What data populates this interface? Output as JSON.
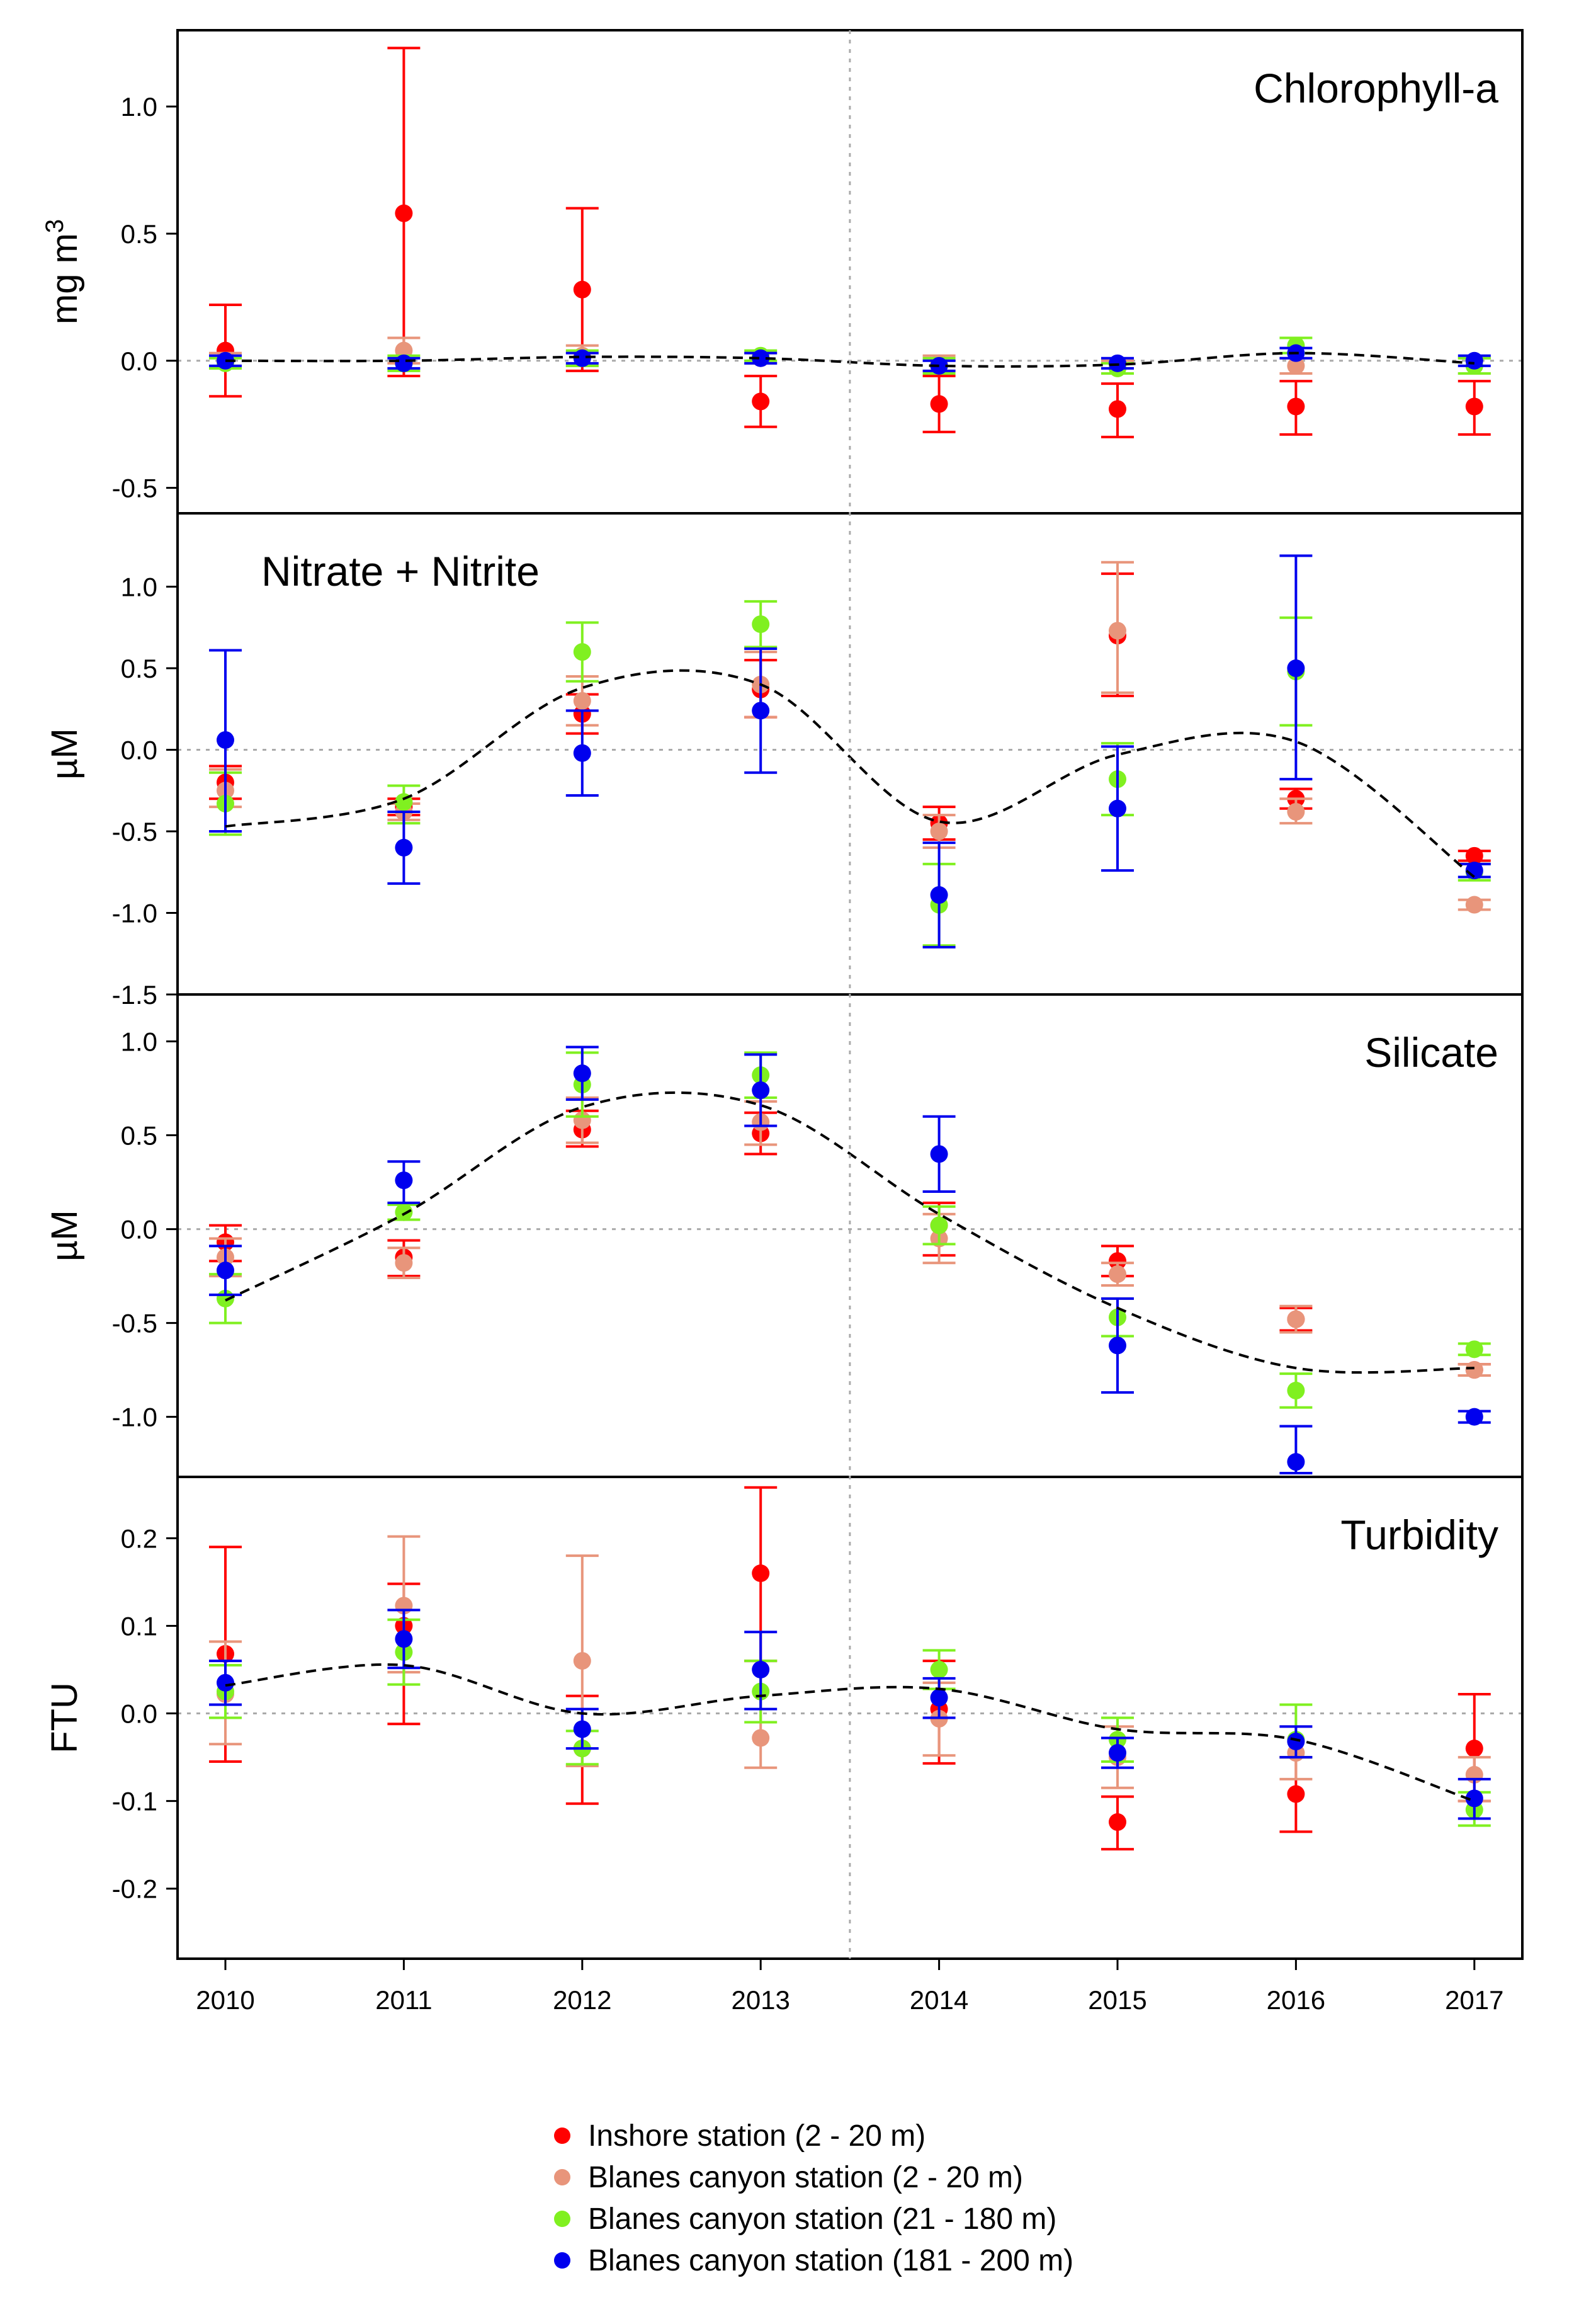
{
  "chart_data": {
    "type": "scatter",
    "x": [
      "2010",
      "2011",
      "2012",
      "2013",
      "2014",
      "2015",
      "2016",
      "2017"
    ],
    "series_names": [
      "Inshore station (2 - 20 m)",
      "Blanes canyon station (2 - 20 m)",
      "Blanes canyon station (21 - 180 m)",
      "Blanes canyon station (181 - 200 m)"
    ],
    "series_colors": [
      "#ff0000",
      "#e8957b",
      "#80f020",
      "#0000ee"
    ],
    "vline_between": [
      "2013",
      "2014"
    ],
    "panels": [
      {
        "title": "Chlorophyll-a",
        "title_position": "top-right",
        "ylabel": "mg m",
        "ylabel_sup": "3",
        "ylim": [
          -0.6,
          1.3
        ],
        "yticks": [
          "1.0",
          "0.5",
          "0.0",
          "-0.5"
        ],
        "series": [
          {
            "name": "Inshore station (2 - 20 m)",
            "values": [
              0.04,
              0.58,
              0.28,
              -0.16,
              -0.17,
              -0.19,
              -0.18,
              -0.18
            ],
            "lower": [
              -0.14,
              -0.06,
              -0.04,
              -0.26,
              -0.28,
              -0.3,
              -0.29,
              -0.29
            ],
            "upper": [
              0.22,
              1.23,
              0.6,
              -0.06,
              -0.06,
              -0.09,
              -0.08,
              -0.08
            ]
          },
          {
            "name": "Blanes canyon station (2 - 20 m)",
            "values": [
              0.0,
              0.04,
              0.02,
              0.01,
              -0.01,
              -0.03,
              -0.02,
              -0.02
            ],
            "lower": [
              -0.03,
              -0.01,
              -0.02,
              -0.01,
              -0.04,
              -0.05,
              -0.05,
              -0.05
            ],
            "upper": [
              0.03,
              0.09,
              0.06,
              0.03,
              0.02,
              0.0,
              0.01,
              0.01
            ]
          },
          {
            "name": "Blanes canyon station (21 - 180 m)",
            "values": [
              -0.01,
              -0.01,
              0.01,
              0.02,
              -0.02,
              -0.03,
              0.06,
              -0.02
            ],
            "lower": [
              -0.03,
              -0.04,
              -0.02,
              -0.0,
              -0.05,
              -0.05,
              0.03,
              -0.05
            ],
            "upper": [
              0.01,
              0.02,
              0.04,
              0.04,
              0.01,
              -0.01,
              0.09,
              0.01
            ]
          },
          {
            "name": "Blanes canyon station (181 - 200 m)",
            "values": [
              0.0,
              -0.01,
              0.01,
              0.01,
              -0.02,
              -0.01,
              0.03,
              0.0
            ],
            "lower": [
              -0.02,
              -0.03,
              -0.01,
              -0.01,
              -0.04,
              -0.03,
              0.01,
              -0.02
            ],
            "upper": [
              0.02,
              0.01,
              0.03,
              0.03,
              0.0,
              0.01,
              0.05,
              0.02
            ]
          }
        ],
        "trend": [
          0.0,
          0.0,
          0.015,
          0.01,
          -0.02,
          -0.015,
          0.03,
          -0.01
        ]
      },
      {
        "title": "Nitrate + Nitrite",
        "title_position": "top-left",
        "ylabel": "µM",
        "ylabel_sup": "",
        "ylim": [
          -1.5,
          1.45
        ],
        "yticks": [
          "1.0",
          "0.5",
          "0.0",
          "-0.5",
          "-1.0",
          "-1.5"
        ],
        "series": [
          {
            "name": "Inshore station (2 - 20 m)",
            "values": [
              -0.2,
              -0.35,
              0.22,
              0.37,
              -0.45,
              0.7,
              -0.3,
              -0.65
            ],
            "lower": [
              -0.3,
              -0.4,
              0.1,
              0.2,
              -0.55,
              0.33,
              -0.36,
              -0.68
            ],
            "upper": [
              -0.1,
              -0.3,
              0.34,
              0.55,
              -0.35,
              1.08,
              -0.24,
              -0.62
            ]
          },
          {
            "name": "Blanes canyon station (2 - 20 m)",
            "values": [
              -0.25,
              -0.38,
              0.3,
              0.4,
              -0.5,
              0.73,
              -0.38,
              -0.95
            ],
            "lower": [
              -0.35,
              -0.43,
              0.15,
              0.2,
              -0.6,
              0.35,
              -0.45,
              -0.98
            ],
            "upper": [
              -0.12,
              -0.33,
              0.45,
              0.6,
              -0.4,
              1.15,
              -0.3,
              -0.92
            ]
          },
          {
            "name": "Blanes canyon station (21 - 180 m)",
            "values": [
              -0.33,
              -0.32,
              0.6,
              0.77,
              -0.95,
              -0.18,
              0.48,
              -0.75
            ],
            "lower": [
              -0.52,
              -0.45,
              0.42,
              0.63,
              -1.2,
              -0.4,
              0.15,
              -0.8
            ],
            "upper": [
              -0.14,
              -0.22,
              0.78,
              0.91,
              -0.7,
              0.04,
              0.81,
              -0.7
            ]
          },
          {
            "name": "Blanes canyon station (181 - 200 m)",
            "values": [
              0.06,
              -0.6,
              -0.02,
              0.24,
              -0.89,
              -0.36,
              0.5,
              -0.74
            ],
            "lower": [
              -0.5,
              -0.82,
              -0.28,
              -0.14,
              -1.21,
              -0.74,
              -0.18,
              -0.78
            ],
            "upper": [
              0.61,
              -0.38,
              0.24,
              0.62,
              -0.57,
              0.02,
              1.19,
              -0.7
            ]
          }
        ],
        "trend": [
          -0.47,
          -0.3,
          0.38,
          0.4,
          -0.44,
          -0.03,
          0.05,
          -0.78
        ]
      },
      {
        "title": "Silicate",
        "title_position": "top-right",
        "ylabel": "µM",
        "ylabel_sup": "",
        "ylim": [
          -1.32,
          1.25
        ],
        "yticks": [
          "1.0",
          "0.5",
          "0.0",
          "-0.5",
          "-1.0"
        ],
        "series": [
          {
            "name": "Inshore station (2 - 20 m)",
            "values": [
              -0.07,
              -0.15,
              0.53,
              0.51,
              0.02,
              -0.17,
              -0.48,
              -0.75
            ],
            "lower": [
              -0.17,
              -0.25,
              0.44,
              0.4,
              -0.14,
              -0.25,
              -0.54,
              -0.78
            ],
            "upper": [
              0.02,
              -0.06,
              0.63,
              0.62,
              0.14,
              -0.09,
              -0.42,
              -0.72
            ]
          },
          {
            "name": "Blanes canyon station (2 - 20 m)",
            "values": [
              -0.15,
              -0.18,
              0.58,
              0.57,
              -0.05,
              -0.24,
              -0.48,
              -0.75
            ],
            "lower": [
              -0.25,
              -0.26,
              0.46,
              0.45,
              -0.18,
              -0.3,
              -0.55,
              -0.78
            ],
            "upper": [
              -0.05,
              -0.1,
              0.7,
              0.68,
              0.08,
              -0.18,
              -0.41,
              -0.72
            ]
          },
          {
            "name": "Blanes canyon station (21 - 180 m)",
            "values": [
              -0.37,
              0.09,
              0.77,
              0.82,
              0.02,
              -0.47,
              -0.86,
              -0.64
            ],
            "lower": [
              -0.5,
              0.05,
              0.6,
              0.7,
              -0.08,
              -0.57,
              -0.95,
              -0.67
            ],
            "upper": [
              -0.24,
              0.13,
              0.94,
              0.94,
              0.12,
              -0.37,
              -0.77,
              -0.61
            ]
          },
          {
            "name": "Blanes canyon station (181 - 200 m)",
            "values": [
              -0.22,
              0.26,
              0.83,
              0.74,
              0.4,
              -0.62,
              -1.24,
              -1.0
            ],
            "lower": [
              -0.35,
              0.14,
              0.69,
              0.55,
              0.2,
              -0.87,
              -1.3,
              -1.03
            ],
            "upper": [
              -0.09,
              0.36,
              0.97,
              0.93,
              0.6,
              -0.37,
              -1.05,
              -0.97
            ]
          }
        ],
        "trend": [
          -0.38,
          0.08,
          0.65,
          0.66,
          0.08,
          -0.42,
          -0.74,
          -0.74
        ]
      },
      {
        "title": "Turbidity",
        "title_position": "top-right",
        "ylabel": "FTU",
        "ylabel_sup": "",
        "ylim": [
          -0.28,
          0.27
        ],
        "yticks": [
          "0.2",
          "0.1",
          "0.0",
          "-0.1",
          "-0.2"
        ],
        "series": [
          {
            "name": "Inshore station (2 - 20 m)",
            "values": [
              0.068,
              0.1,
              -0.04,
              0.16,
              0.005,
              -0.124,
              -0.092,
              -0.04
            ],
            "lower": [
              -0.055,
              -0.012,
              -0.103,
              0.06,
              -0.057,
              -0.155,
              -0.135,
              -0.1
            ],
            "upper": [
              0.19,
              0.148,
              0.02,
              0.258,
              0.06,
              -0.095,
              -0.05,
              0.022
            ]
          },
          {
            "name": "Blanes canyon station (2 - 20 m)",
            "values": [
              0.022,
              0.123,
              0.06,
              -0.028,
              -0.006,
              -0.05,
              -0.045,
              -0.07
            ],
            "lower": [
              -0.035,
              0.047,
              -0.06,
              -0.062,
              -0.048,
              -0.085,
              -0.075,
              -0.1
            ],
            "upper": [
              0.082,
              0.202,
              0.18,
              0.06,
              0.035,
              -0.015,
              -0.015,
              -0.05
            ]
          },
          {
            "name": "Blanes canyon station (21 - 180 m)",
            "values": [
              0.025,
              0.07,
              -0.04,
              0.025,
              0.05,
              -0.03,
              -0.03,
              -0.11
            ],
            "lower": [
              -0.005,
              0.033,
              -0.058,
              -0.01,
              0.028,
              -0.055,
              -0.05,
              -0.128
            ],
            "upper": [
              0.055,
              0.107,
              -0.02,
              0.06,
              0.072,
              -0.005,
              0.01,
              -0.09
            ]
          },
          {
            "name": "Blanes canyon station (181 - 200 m)",
            "values": [
              0.035,
              0.085,
              -0.018,
              0.05,
              0.018,
              -0.045,
              -0.032,
              -0.097
            ],
            "lower": [
              0.01,
              0.052,
              -0.04,
              0.005,
              -0.005,
              -0.062,
              -0.05,
              -0.12
            ],
            "upper": [
              0.06,
              0.118,
              0.005,
              0.093,
              0.04,
              -0.028,
              -0.015,
              -0.075
            ]
          }
        ],
        "trend": [
          0.032,
          0.055,
          0.0,
          0.02,
          0.028,
          -0.018,
          -0.03,
          -0.1
        ]
      }
    ]
  }
}
